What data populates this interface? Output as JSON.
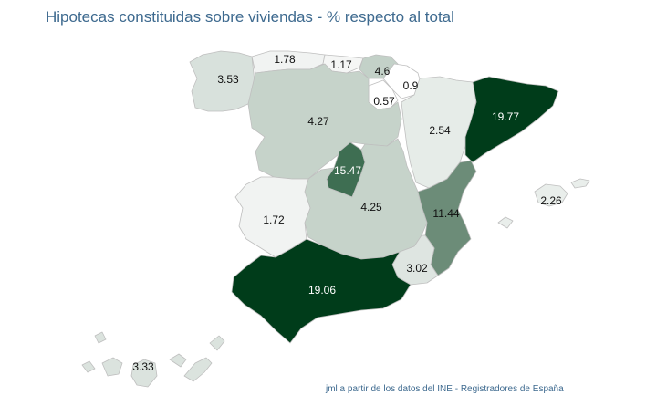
{
  "title": "Hipotecas constituidas sobre viviendas - % respecto al total",
  "source": "jml a partir de los datos del INE - Registradores de España",
  "regions": [
    {
      "id": "galicia",
      "value": "3.53",
      "fill": "#d8e1dc",
      "text_color": "#111111"
    },
    {
      "id": "asturias",
      "value": "1.78",
      "fill": "#f1f3f2",
      "text_color": "#111111"
    },
    {
      "id": "cantabria",
      "value": "1.17",
      "fill": "#f5f6f5",
      "text_color": "#111111"
    },
    {
      "id": "pais-vasco",
      "value": "4.6",
      "fill": "#c3d1c8",
      "text_color": "#111111"
    },
    {
      "id": "navarra",
      "value": "0.9",
      "fill": "#ffffff",
      "text_color": "#111111"
    },
    {
      "id": "la-rioja",
      "value": "0.57",
      "fill": "#ffffff",
      "text_color": "#111111"
    },
    {
      "id": "aragon",
      "value": "2.54",
      "fill": "#e6ece8",
      "text_color": "#111111"
    },
    {
      "id": "cataluna",
      "value": "19.77",
      "fill": "#003c1a",
      "text_color": "#ffffff"
    },
    {
      "id": "castilla-leon",
      "value": "4.27",
      "fill": "#c6d3ca",
      "text_color": "#111111"
    },
    {
      "id": "madrid",
      "value": "15.47",
      "fill": "#3e6e52",
      "text_color": "#ffffff"
    },
    {
      "id": "castilla-la-mancha",
      "value": "4.25",
      "fill": "#c6d3ca",
      "text_color": "#111111"
    },
    {
      "id": "extremadura",
      "value": "1.72",
      "fill": "#f1f3f2",
      "text_color": "#111111"
    },
    {
      "id": "valencia",
      "value": "11.44",
      "fill": "#6c8c78",
      "text_color": "#111111"
    },
    {
      "id": "baleares",
      "value": "2.26",
      "fill": "#e9eeeb",
      "text_color": "#111111"
    },
    {
      "id": "murcia",
      "value": "3.02",
      "fill": "#dee5e1",
      "text_color": "#111111"
    },
    {
      "id": "andalucia",
      "value": "19.06",
      "fill": "#003c1a",
      "text_color": "#ffffff"
    },
    {
      "id": "canarias",
      "value": "3.33",
      "fill": "#dbe3de",
      "text_color": "#111111"
    }
  ]
}
